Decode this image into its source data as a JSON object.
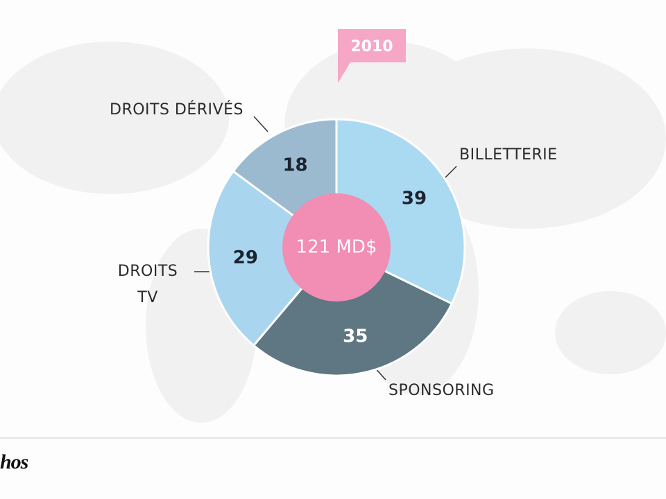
{
  "chart_data": {
    "type": "donut",
    "annotations": {
      "year": "2010",
      "total": "121 MD$"
    },
    "categories": [
      "BILLETTERIE",
      "SPONSORING",
      "DROITS TV",
      "DROITS DÉRIVÉS"
    ],
    "values": [
      39,
      35,
      29,
      18
    ],
    "colors": [
      "#aad9f2",
      "#5f7683",
      "#a9d5ef",
      "#9bbad0"
    ],
    "value_label_colors": [
      "#1c2430",
      "#ffffff",
      "#1c2430",
      "#1c2430"
    ],
    "center_color": "#f28db3",
    "logo": "hos"
  }
}
